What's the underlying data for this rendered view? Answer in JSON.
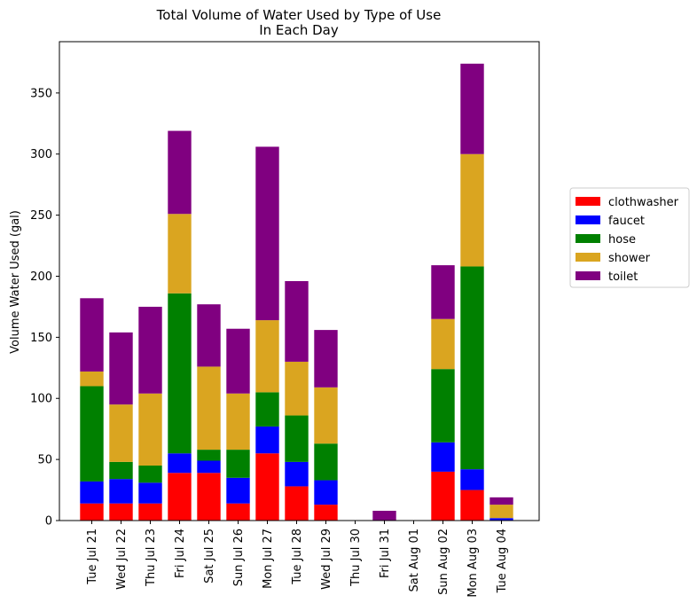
{
  "chart_data": {
    "type": "bar",
    "stacked": true,
    "title": "Total Volume of Water Used by Type of Use",
    "subtitle": "In Each Day",
    "xlabel": "",
    "ylabel": "Volume Water Used (gal)",
    "ylim": [
      0,
      392
    ],
    "yticks": [
      0,
      50,
      100,
      150,
      200,
      250,
      300,
      350
    ],
    "grid": false,
    "legend_position": "right",
    "categories": [
      "Tue Jul 21",
      "Wed Jul 22",
      "Thu Jul 23",
      "Fri Jul 24",
      "Sat Jul 25",
      "Sun Jul 26",
      "Mon Jul 27",
      "Tue Jul 28",
      "Wed Jul 29",
      "Thu Jul 30",
      "Fri Jul 31",
      "Sat Aug 01",
      "Sun Aug 02",
      "Mon Aug 03",
      "Tue Aug 04"
    ],
    "series": [
      {
        "name": "clothwasher",
        "color": "#ff0000",
        "values": [
          14,
          14,
          14,
          39,
          39,
          14,
          55,
          28,
          13,
          0,
          0,
          0,
          40,
          25,
          0
        ]
      },
      {
        "name": "faucet",
        "color": "#0000ff",
        "values": [
          18,
          20,
          17,
          16,
          10,
          21,
          22,
          20,
          20,
          0,
          0,
          0,
          24,
          17,
          2
        ]
      },
      {
        "name": "hose",
        "color": "#008000",
        "values": [
          78,
          14,
          14,
          131,
          9,
          23,
          28,
          38,
          30,
          0,
          0,
          0,
          60,
          166,
          0
        ]
      },
      {
        "name": "shower",
        "color": "#daa520",
        "values": [
          12,
          47,
          59,
          65,
          68,
          46,
          59,
          44,
          46,
          0,
          0,
          0,
          41,
          92,
          11
        ]
      },
      {
        "name": "toilet",
        "color": "#800080",
        "values": [
          60,
          59,
          71,
          68,
          51,
          53,
          142,
          66,
          47,
          0,
          8,
          0,
          44,
          74,
          6
        ]
      }
    ]
  }
}
